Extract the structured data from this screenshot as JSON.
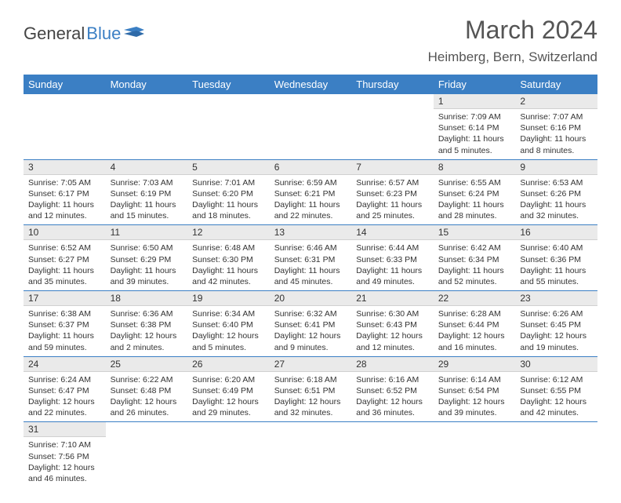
{
  "logo": {
    "text1": "General",
    "text2": "Blue"
  },
  "title": "March 2024",
  "location": "Heimberg, Bern, Switzerland",
  "colors": {
    "header_bg": "#3b7fc4",
    "header_text": "#ffffff",
    "daynum_bg": "#eaeaea",
    "row_border": "#3b7fc4",
    "body_text": "#333333"
  },
  "weekdays": [
    "Sunday",
    "Monday",
    "Tuesday",
    "Wednesday",
    "Thursday",
    "Friday",
    "Saturday"
  ],
  "weeks": [
    [
      null,
      null,
      null,
      null,
      null,
      {
        "n": "1",
        "sr": "Sunrise: 7:09 AM",
        "ss": "Sunset: 6:14 PM",
        "dl": "Daylight: 11 hours and 5 minutes."
      },
      {
        "n": "2",
        "sr": "Sunrise: 7:07 AM",
        "ss": "Sunset: 6:16 PM",
        "dl": "Daylight: 11 hours and 8 minutes."
      }
    ],
    [
      {
        "n": "3",
        "sr": "Sunrise: 7:05 AM",
        "ss": "Sunset: 6:17 PM",
        "dl": "Daylight: 11 hours and 12 minutes."
      },
      {
        "n": "4",
        "sr": "Sunrise: 7:03 AM",
        "ss": "Sunset: 6:19 PM",
        "dl": "Daylight: 11 hours and 15 minutes."
      },
      {
        "n": "5",
        "sr": "Sunrise: 7:01 AM",
        "ss": "Sunset: 6:20 PM",
        "dl": "Daylight: 11 hours and 18 minutes."
      },
      {
        "n": "6",
        "sr": "Sunrise: 6:59 AM",
        "ss": "Sunset: 6:21 PM",
        "dl": "Daylight: 11 hours and 22 minutes."
      },
      {
        "n": "7",
        "sr": "Sunrise: 6:57 AM",
        "ss": "Sunset: 6:23 PM",
        "dl": "Daylight: 11 hours and 25 minutes."
      },
      {
        "n": "8",
        "sr": "Sunrise: 6:55 AM",
        "ss": "Sunset: 6:24 PM",
        "dl": "Daylight: 11 hours and 28 minutes."
      },
      {
        "n": "9",
        "sr": "Sunrise: 6:53 AM",
        "ss": "Sunset: 6:26 PM",
        "dl": "Daylight: 11 hours and 32 minutes."
      }
    ],
    [
      {
        "n": "10",
        "sr": "Sunrise: 6:52 AM",
        "ss": "Sunset: 6:27 PM",
        "dl": "Daylight: 11 hours and 35 minutes."
      },
      {
        "n": "11",
        "sr": "Sunrise: 6:50 AM",
        "ss": "Sunset: 6:29 PM",
        "dl": "Daylight: 11 hours and 39 minutes."
      },
      {
        "n": "12",
        "sr": "Sunrise: 6:48 AM",
        "ss": "Sunset: 6:30 PM",
        "dl": "Daylight: 11 hours and 42 minutes."
      },
      {
        "n": "13",
        "sr": "Sunrise: 6:46 AM",
        "ss": "Sunset: 6:31 PM",
        "dl": "Daylight: 11 hours and 45 minutes."
      },
      {
        "n": "14",
        "sr": "Sunrise: 6:44 AM",
        "ss": "Sunset: 6:33 PM",
        "dl": "Daylight: 11 hours and 49 minutes."
      },
      {
        "n": "15",
        "sr": "Sunrise: 6:42 AM",
        "ss": "Sunset: 6:34 PM",
        "dl": "Daylight: 11 hours and 52 minutes."
      },
      {
        "n": "16",
        "sr": "Sunrise: 6:40 AM",
        "ss": "Sunset: 6:36 PM",
        "dl": "Daylight: 11 hours and 55 minutes."
      }
    ],
    [
      {
        "n": "17",
        "sr": "Sunrise: 6:38 AM",
        "ss": "Sunset: 6:37 PM",
        "dl": "Daylight: 11 hours and 59 minutes."
      },
      {
        "n": "18",
        "sr": "Sunrise: 6:36 AM",
        "ss": "Sunset: 6:38 PM",
        "dl": "Daylight: 12 hours and 2 minutes."
      },
      {
        "n": "19",
        "sr": "Sunrise: 6:34 AM",
        "ss": "Sunset: 6:40 PM",
        "dl": "Daylight: 12 hours and 5 minutes."
      },
      {
        "n": "20",
        "sr": "Sunrise: 6:32 AM",
        "ss": "Sunset: 6:41 PM",
        "dl": "Daylight: 12 hours and 9 minutes."
      },
      {
        "n": "21",
        "sr": "Sunrise: 6:30 AM",
        "ss": "Sunset: 6:43 PM",
        "dl": "Daylight: 12 hours and 12 minutes."
      },
      {
        "n": "22",
        "sr": "Sunrise: 6:28 AM",
        "ss": "Sunset: 6:44 PM",
        "dl": "Daylight: 12 hours and 16 minutes."
      },
      {
        "n": "23",
        "sr": "Sunrise: 6:26 AM",
        "ss": "Sunset: 6:45 PM",
        "dl": "Daylight: 12 hours and 19 minutes."
      }
    ],
    [
      {
        "n": "24",
        "sr": "Sunrise: 6:24 AM",
        "ss": "Sunset: 6:47 PM",
        "dl": "Daylight: 12 hours and 22 minutes."
      },
      {
        "n": "25",
        "sr": "Sunrise: 6:22 AM",
        "ss": "Sunset: 6:48 PM",
        "dl": "Daylight: 12 hours and 26 minutes."
      },
      {
        "n": "26",
        "sr": "Sunrise: 6:20 AM",
        "ss": "Sunset: 6:49 PM",
        "dl": "Daylight: 12 hours and 29 minutes."
      },
      {
        "n": "27",
        "sr": "Sunrise: 6:18 AM",
        "ss": "Sunset: 6:51 PM",
        "dl": "Daylight: 12 hours and 32 minutes."
      },
      {
        "n": "28",
        "sr": "Sunrise: 6:16 AM",
        "ss": "Sunset: 6:52 PM",
        "dl": "Daylight: 12 hours and 36 minutes."
      },
      {
        "n": "29",
        "sr": "Sunrise: 6:14 AM",
        "ss": "Sunset: 6:54 PM",
        "dl": "Daylight: 12 hours and 39 minutes."
      },
      {
        "n": "30",
        "sr": "Sunrise: 6:12 AM",
        "ss": "Sunset: 6:55 PM",
        "dl": "Daylight: 12 hours and 42 minutes."
      }
    ],
    [
      {
        "n": "31",
        "sr": "Sunrise: 7:10 AM",
        "ss": "Sunset: 7:56 PM",
        "dl": "Daylight: 12 hours and 46 minutes."
      },
      null,
      null,
      null,
      null,
      null,
      null
    ]
  ]
}
